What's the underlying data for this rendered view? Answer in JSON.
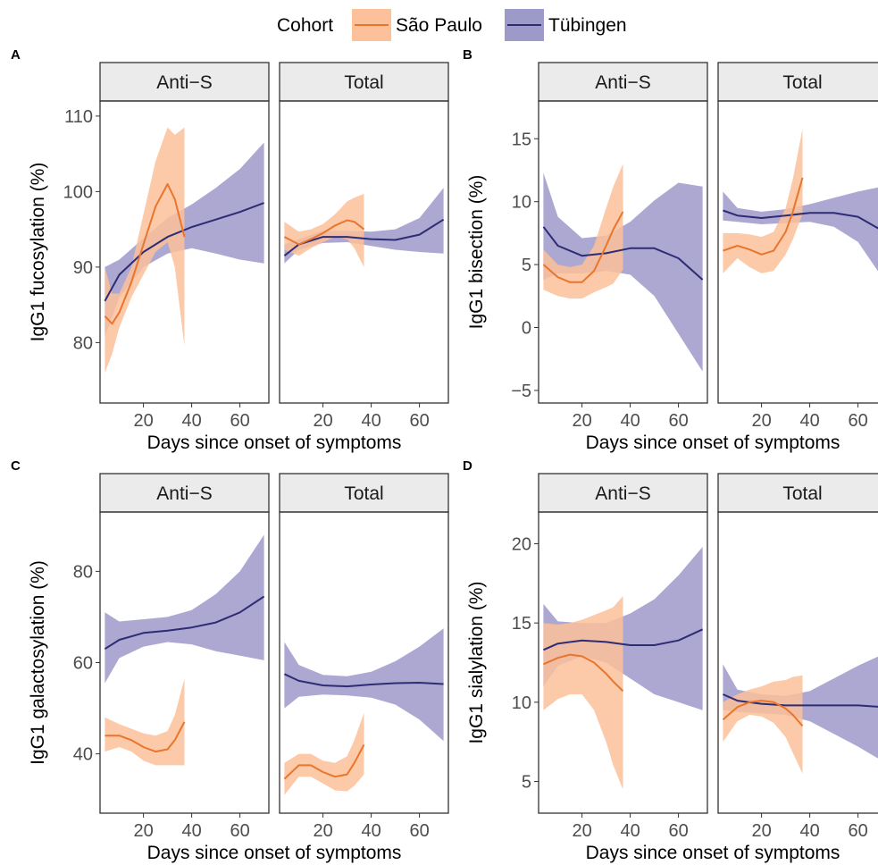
{
  "legend": {
    "title": "Cohort",
    "entries": [
      {
        "label": "São Paulo",
        "color": "#E8762C",
        "fill": "#FCC09A"
      },
      {
        "label": "Tübingen",
        "color": "#2E2C74",
        "fill": "#9D99C9"
      }
    ]
  },
  "chart_data": [
    {
      "letter": "A",
      "type": "line",
      "ylabel": "IgG1 fucosylation (%)",
      "xlabel": "Days since onset of symptoms",
      "xlim": [
        2,
        72
      ],
      "ylim": [
        72,
        112
      ],
      "yticks": [
        80,
        90,
        100,
        110
      ],
      "xticks": [
        20,
        40,
        60
      ],
      "facets": [
        {
          "label": "Anti−S",
          "series": [
            {
              "name": "Tübingen",
              "x": [
                4,
                10,
                20,
                30,
                40,
                50,
                60,
                70
              ],
              "y": [
                85.5,
                89,
                92,
                94,
                95.3,
                96.3,
                97.3,
                98.5
              ],
              "lo": [
                80.8,
                86,
                90,
                91.8,
                92.5,
                91.8,
                91,
                90.5
              ],
              "hi": [
                90,
                91,
                93.8,
                96.5,
                98.3,
                100.5,
                103,
                106.5
              ]
            },
            {
              "name": "São Paulo",
              "x": [
                4,
                7,
                10,
                15,
                20,
                25,
                30,
                33,
                37
              ],
              "y": [
                83.5,
                82.5,
                84,
                88,
                93,
                98,
                101,
                99,
                94
              ],
              "lo": [
                76,
                78.5,
                82,
                86,
                89,
                92,
                93.3,
                90,
                79.5
              ],
              "hi": [
                90,
                86.5,
                86.5,
                90,
                97,
                104,
                108.5,
                107.5,
                108.5
              ]
            }
          ]
        },
        {
          "label": "Total",
          "series": [
            {
              "name": "Tübingen",
              "x": [
                4,
                10,
                20,
                30,
                40,
                50,
                60,
                70
              ],
              "y": [
                91.5,
                93,
                94,
                94,
                93.7,
                93.6,
                94.3,
                96.3
              ],
              "lo": [
                90.5,
                92.3,
                93.2,
                93.3,
                92.8,
                92.3,
                92,
                91.8
              ],
              "hi": [
                93,
                93.7,
                94.8,
                94.8,
                94.7,
                95,
                96.5,
                100.5
              ]
            },
            {
              "name": "São Paulo",
              "x": [
                4,
                10,
                15,
                20,
                25,
                30,
                33,
                37
              ],
              "y": [
                94,
                93,
                93.7,
                94.5,
                95.5,
                96.2,
                96,
                95
              ],
              "lo": [
                92.3,
                91.5,
                92.5,
                93.3,
                94,
                93.7,
                92.5,
                90
              ],
              "hi": [
                96,
                94.7,
                95,
                95.7,
                97,
                98.7,
                99.2,
                99.7
              ]
            }
          ]
        }
      ]
    },
    {
      "letter": "B",
      "type": "line",
      "ylabel": "IgG1 bisection (%)",
      "xlabel": "Days since onset of symptoms",
      "xlim": [
        2,
        72
      ],
      "ylim": [
        -6,
        18
      ],
      "yticks": [
        -5,
        0,
        5,
        10,
        15
      ],
      "xticks": [
        20,
        40,
        60
      ],
      "facets": [
        {
          "label": "Anti−S",
          "series": [
            {
              "name": "Tübingen",
              "x": [
                4,
                10,
                20,
                30,
                40,
                50,
                60,
                70
              ],
              "y": [
                8,
                6.5,
                5.7,
                5.9,
                6.3,
                6.3,
                5.5,
                3.8
              ],
              "lo": [
                3.8,
                4.3,
                4.3,
                4.5,
                4.2,
                2.5,
                -0.5,
                -3.5
              ],
              "hi": [
                12.3,
                8.8,
                7.1,
                7.3,
                8.4,
                10.1,
                11.5,
                11.2
              ]
            },
            {
              "name": "São Paulo",
              "x": [
                4,
                10,
                15,
                20,
                25,
                30,
                33,
                37
              ],
              "y": [
                5,
                4,
                3.6,
                3.6,
                4.5,
                6.5,
                7.8,
                9.2
              ],
              "lo": [
                3,
                2.5,
                2.3,
                2.3,
                2.8,
                3.2,
                3.5,
                4.6
              ],
              "hi": [
                6.2,
                5,
                4.8,
                5,
                6.5,
                9.5,
                11.2,
                13
              ]
            }
          ]
        },
        {
          "label": "Total",
          "series": [
            {
              "name": "Tübingen",
              "x": [
                4,
                10,
                20,
                30,
                40,
                50,
                60,
                70
              ],
              "y": [
                9.3,
                8.9,
                8.7,
                8.9,
                9.1,
                9.1,
                8.8,
                7.7
              ],
              "lo": [
                8.5,
                8.4,
                8.2,
                8.3,
                8.4,
                8,
                6.8,
                4
              ],
              "hi": [
                10.8,
                9.5,
                9.2,
                9.4,
                9.8,
                10.3,
                10.8,
                11.2
              ]
            },
            {
              "name": "São Paulo",
              "x": [
                4,
                10,
                15,
                20,
                25,
                30,
                33,
                37
              ],
              "y": [
                6.1,
                6.5,
                6.2,
                5.8,
                6.1,
                7.6,
                9.2,
                11.9
              ],
              "lo": [
                4.3,
                5.5,
                4.8,
                4.3,
                4.5,
                5.8,
                7,
                9
              ],
              "hi": [
                7.5,
                7.5,
                7.4,
                7.2,
                7.6,
                9.5,
                11.8,
                15.8
              ]
            }
          ]
        }
      ]
    },
    {
      "letter": "C",
      "type": "line",
      "ylabel": "IgG1 galactosylation (%)",
      "xlabel": "Days since onset of symptoms",
      "xlim": [
        2,
        72
      ],
      "ylim": [
        27,
        93
      ],
      "yticks": [
        40,
        60,
        80
      ],
      "xticks": [
        20,
        40,
        60
      ],
      "facets": [
        {
          "label": "Anti−S",
          "series": [
            {
              "name": "Tübingen",
              "x": [
                4,
                10,
                20,
                30,
                40,
                50,
                60,
                70
              ],
              "y": [
                63,
                65,
                66.5,
                67,
                67.7,
                68.8,
                71,
                74.5
              ],
              "lo": [
                55.5,
                61,
                63.5,
                64.5,
                64,
                62.5,
                61.5,
                60.5
              ],
              "hi": [
                71,
                69,
                69.5,
                70,
                71.5,
                75,
                80,
                88
              ]
            },
            {
              "name": "São Paulo",
              "x": [
                4,
                10,
                15,
                20,
                25,
                30,
                33,
                37
              ],
              "y": [
                44,
                44,
                43,
                41.5,
                40.5,
                41,
                43,
                47
              ],
              "lo": [
                40.5,
                41.5,
                40.5,
                38.5,
                37.5,
                37.5,
                37.5,
                37.5
              ],
              "hi": [
                48,
                46.5,
                45.5,
                44.5,
                44,
                45,
                48.5,
                56.5
              ]
            }
          ]
        },
        {
          "label": "Total",
          "series": [
            {
              "name": "Tübingen",
              "x": [
                4,
                10,
                20,
                30,
                40,
                50,
                60,
                70
              ],
              "y": [
                57.5,
                56,
                55,
                54.8,
                55.2,
                55.5,
                55.6,
                55.3
              ],
              "lo": [
                50,
                52.5,
                53,
                52.8,
                52.3,
                50.8,
                47.5,
                42.8
              ],
              "hi": [
                64.5,
                59.5,
                57.3,
                57,
                58,
                60.3,
                63.5,
                67.5
              ]
            },
            {
              "name": "São Paulo",
              "x": [
                4,
                10,
                15,
                20,
                25,
                30,
                33,
                37
              ],
              "y": [
                34.5,
                37.5,
                37.5,
                36,
                35,
                35.5,
                38,
                42
              ],
              "lo": [
                31,
                35,
                35,
                33.5,
                32,
                31.8,
                33,
                35.5
              ],
              "hi": [
                38,
                40,
                40,
                38.5,
                38,
                39.5,
                43,
                49
              ]
            }
          ]
        }
      ]
    },
    {
      "letter": "D",
      "type": "line",
      "ylabel": "IgG1 sialylation (%)",
      "xlabel": "Days since onset of symptoms",
      "xlim": [
        2,
        72
      ],
      "ylim": [
        3,
        22
      ],
      "yticks": [
        5,
        10,
        15,
        20
      ],
      "xticks": [
        20,
        40,
        60
      ],
      "facets": [
        {
          "label": "Anti−S",
          "series": [
            {
              "name": "Tübingen",
              "x": [
                4,
                10,
                20,
                30,
                40,
                50,
                60,
                70
              ],
              "y": [
                13.3,
                13.7,
                13.9,
                13.8,
                13.6,
                13.6,
                13.9,
                14.6
              ],
              "lo": [
                11,
                12.3,
                12.9,
                12.5,
                11.5,
                10.5,
                10,
                9.5
              ],
              "hi": [
                16.2,
                15.1,
                15,
                15,
                15.6,
                16.5,
                18,
                19.8
              ]
            },
            {
              "name": "São Paulo",
              "x": [
                4,
                10,
                15,
                20,
                25,
                30,
                33,
                37
              ],
              "y": [
                12.4,
                12.8,
                13,
                12.9,
                12.5,
                11.8,
                11.3,
                10.7
              ],
              "lo": [
                9.5,
                10.2,
                10.5,
                10.5,
                9.5,
                7.5,
                6,
                4.5
              ],
              "hi": [
                15,
                14.9,
                15,
                15.2,
                15.5,
                15.8,
                16,
                16.7
              ]
            }
          ]
        },
        {
          "label": "Total",
          "series": [
            {
              "name": "Tübingen",
              "x": [
                4,
                10,
                20,
                30,
                40,
                50,
                60,
                70
              ],
              "y": [
                10.5,
                10.1,
                9.9,
                9.8,
                9.8,
                9.8,
                9.8,
                9.7
              ],
              "lo": [
                9.5,
                9.4,
                9.3,
                9.2,
                8.8,
                8,
                7.2,
                6.3
              ],
              "hi": [
                12.4,
                10.8,
                10.5,
                10.4,
                10.7,
                11.5,
                12.3,
                13
              ]
            },
            {
              "name": "São Paulo",
              "x": [
                4,
                10,
                15,
                20,
                25,
                30,
                33,
                37
              ],
              "y": [
                8.9,
                9.7,
                10,
                10.1,
                10,
                9.6,
                9.2,
                8.5
              ],
              "lo": [
                7.5,
                8.8,
                9.2,
                9.1,
                8.7,
                7.8,
                6.8,
                5.5
              ],
              "hi": [
                10,
                10.5,
                10.8,
                11,
                11.3,
                11.4,
                11.6,
                11.7
              ]
            }
          ]
        }
      ]
    }
  ]
}
